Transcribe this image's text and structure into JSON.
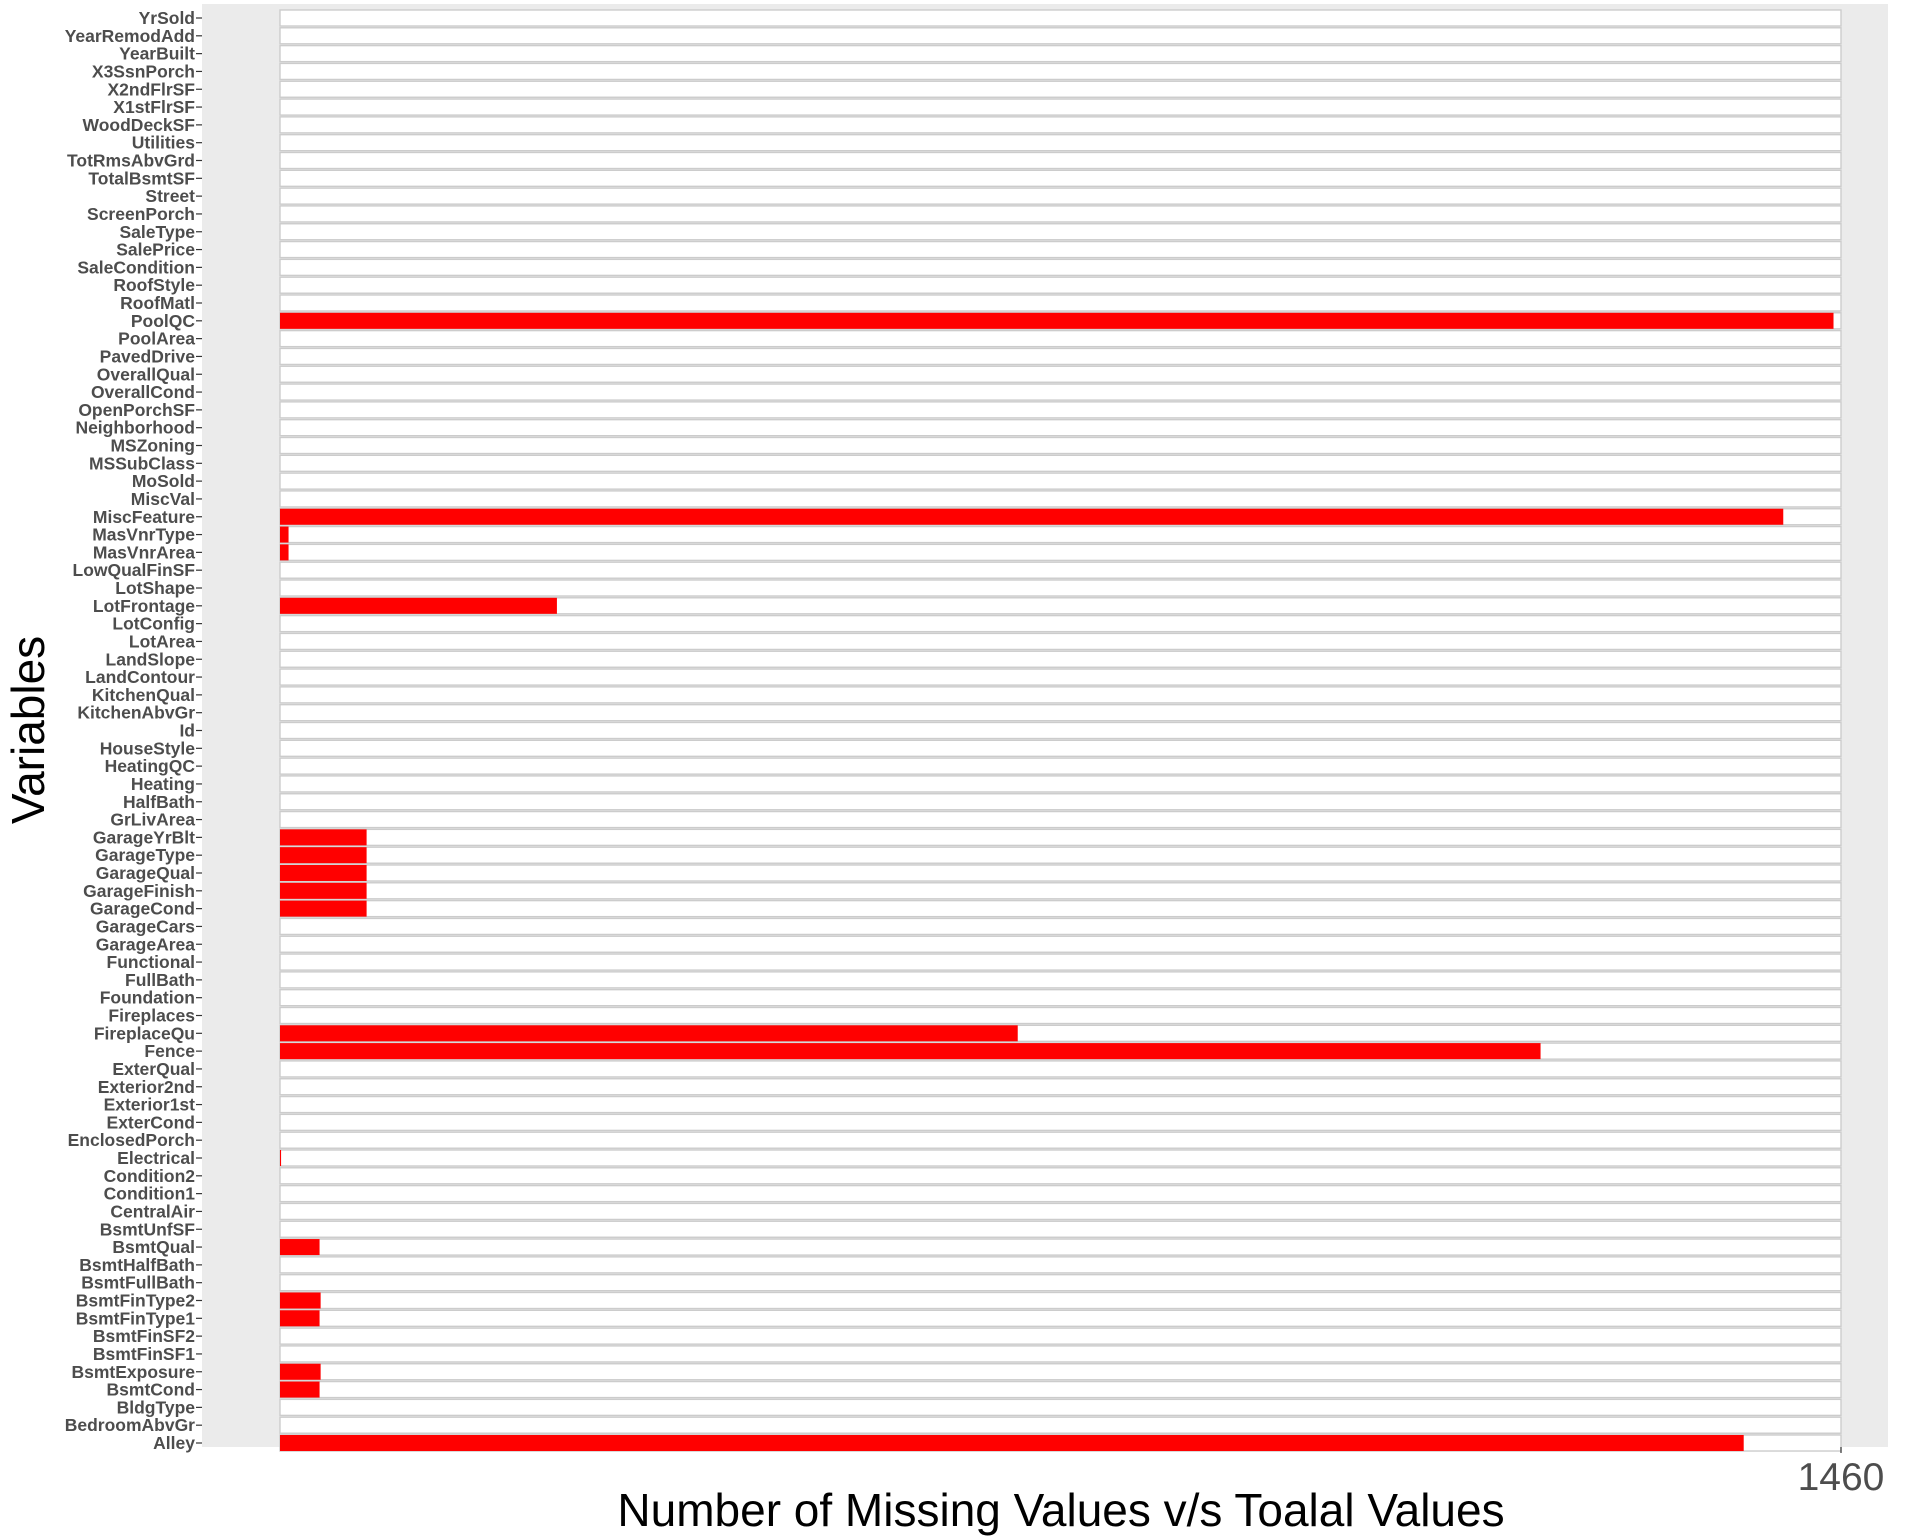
{
  "chart_data": {
    "type": "bar",
    "orientation": "horizontal",
    "title": "",
    "xlabel": "Number of Missing Values v/s Toalal Values",
    "ylabel": "Variables",
    "x_tick_labels": [
      "1460"
    ],
    "xlim": [
      0,
      1460
    ],
    "grid": false,
    "legend": "none",
    "categories": [
      "Alley",
      "BedroomAbvGr",
      "BldgType",
      "BsmtCond",
      "BsmtExposure",
      "BsmtFinSF1",
      "BsmtFinSF2",
      "BsmtFinType1",
      "BsmtFinType2",
      "BsmtFullBath",
      "BsmtHalfBath",
      "BsmtQual",
      "BsmtUnfSF",
      "CentralAir",
      "Condition1",
      "Condition2",
      "Electrical",
      "EnclosedPorch",
      "ExterCond",
      "Exterior1st",
      "Exterior2nd",
      "ExterQual",
      "Fence",
      "FireplaceQu",
      "Fireplaces",
      "Foundation",
      "FullBath",
      "Functional",
      "GarageArea",
      "GarageCars",
      "GarageCond",
      "GarageFinish",
      "GarageQual",
      "GarageType",
      "GarageYrBlt",
      "GrLivArea",
      "HalfBath",
      "Heating",
      "HeatingQC",
      "HouseStyle",
      "Id",
      "KitchenAbvGr",
      "KitchenQual",
      "LandContour",
      "LandSlope",
      "LotArea",
      "LotConfig",
      "LotFrontage",
      "LotShape",
      "LowQualFinSF",
      "MasVnrArea",
      "MasVnrType",
      "MiscFeature",
      "MiscVal",
      "MoSold",
      "MSSubClass",
      "MSZoning",
      "Neighborhood",
      "OpenPorchSF",
      "OverallCond",
      "OverallQual",
      "PavedDrive",
      "PoolArea",
      "PoolQC",
      "RoofMatl",
      "RoofStyle",
      "SaleCondition",
      "SalePrice",
      "SaleType",
      "ScreenPorch",
      "Street",
      "TotalBsmtSF",
      "TotRmsAbvGrd",
      "Utilities",
      "WoodDeckSF",
      "X1stFlrSF",
      "X2ndFlrSF",
      "X3SsnPorch",
      "YearBuilt",
      "YearRemodAdd",
      "YrSold"
    ],
    "series": [
      {
        "total_values": [
          1460,
          1460,
          1460,
          1460,
          1460,
          1460,
          1460,
          1460,
          1460,
          1460,
          1460,
          1460,
          1460,
          1460,
          1460,
          1460,
          1460,
          1460,
          1460,
          1460,
          1460,
          1460,
          1460,
          1460,
          1460,
          1460,
          1460,
          1460,
          1460,
          1460,
          1460,
          1460,
          1460,
          1460,
          1460,
          1460,
          1460,
          1460,
          1460,
          1460,
          1460,
          1460,
          1460,
          1460,
          1460,
          1460,
          1460,
          1460,
          1460,
          1460,
          1460,
          1460,
          1460,
          1460,
          1460,
          1460,
          1460,
          1460,
          1460,
          1460,
          1460,
          1460,
          1460,
          1460,
          1460,
          1460,
          1460,
          1460,
          1460,
          1460,
          1460,
          1460,
          1460,
          1460,
          1460,
          1460,
          1460,
          1460,
          1460,
          1460,
          1460
        ],
        "missing_values": [
          1369,
          0,
          0,
          37,
          38,
          0,
          0,
          37,
          38,
          0,
          0,
          37,
          0,
          0,
          0,
          0,
          1,
          0,
          0,
          0,
          0,
          0,
          1179,
          690,
          0,
          0,
          0,
          0,
          0,
          0,
          81,
          81,
          81,
          81,
          81,
          0,
          0,
          0,
          0,
          0,
          0,
          0,
          0,
          0,
          0,
          0,
          0,
          259,
          0,
          0,
          8,
          8,
          1406,
          0,
          0,
          0,
          0,
          0,
          0,
          0,
          0,
          0,
          0,
          1453,
          0,
          0,
          0,
          0,
          0,
          0,
          0,
          0,
          0,
          0,
          0,
          0,
          0,
          0,
          0,
          0,
          0
        ]
      }
    ]
  },
  "colors": {
    "panel_background": "#ebebeb",
    "total_bar_fill": "#ffffff",
    "total_bar_outline": "#cccccc",
    "missing_bar_fill": "#ff0000",
    "tick_text": "#4d4d4d",
    "axis_title": "#000000"
  }
}
